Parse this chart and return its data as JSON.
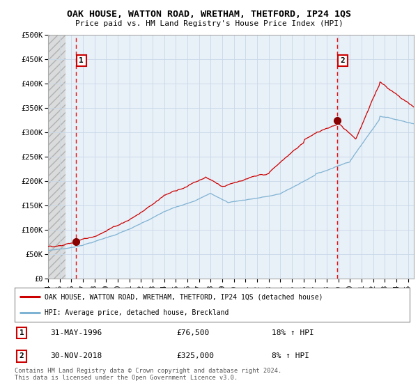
{
  "title": "OAK HOUSE, WATTON ROAD, WRETHAM, THETFORD, IP24 1QS",
  "subtitle": "Price paid vs. HM Land Registry's House Price Index (HPI)",
  "ylabel_ticks": [
    "£0",
    "£50K",
    "£100K",
    "£150K",
    "£200K",
    "£250K",
    "£300K",
    "£350K",
    "£400K",
    "£450K",
    "£500K"
  ],
  "ytick_values": [
    0,
    50000,
    100000,
    150000,
    200000,
    250000,
    300000,
    350000,
    400000,
    450000,
    500000
  ],
  "ylim": [
    0,
    500000
  ],
  "xlim_start": 1994.0,
  "xlim_end": 2025.5,
  "hatch_end": 1995.5,
  "sale1_x": 1996.416,
  "sale1_y": 76500,
  "sale1_label": "1",
  "sale1_date": "31-MAY-1996",
  "sale1_price": "£76,500",
  "sale1_hpi": "18% ↑ HPI",
  "sale2_x": 2018.916,
  "sale2_y": 325000,
  "sale2_label": "2",
  "sale2_date": "30-NOV-2018",
  "sale2_price": "£325,000",
  "sale2_hpi": "8% ↑ HPI",
  "line1_color": "#cc0000",
  "line2_color": "#7fb3d3",
  "vline_color": "#ee0000",
  "marker_color": "#880000",
  "grid_color": "#c8d8e8",
  "background_plot": "#e8f0f8",
  "legend_line1": "OAK HOUSE, WATTON ROAD, WRETHAM, THETFORD, IP24 1QS (detached house)",
  "legend_line2": "HPI: Average price, detached house, Breckland",
  "footer": "Contains HM Land Registry data © Crown copyright and database right 2024.\nThis data is licensed under the Open Government Licence v3.0.",
  "xtick_labels": [
    "94",
    "95",
    "96",
    "97",
    "98",
    "99",
    "00",
    "01",
    "02",
    "03",
    "04",
    "05",
    "06",
    "07",
    "08",
    "09",
    "10",
    "11",
    "12",
    "13",
    "14",
    "15",
    "16",
    "17",
    "18",
    "19",
    "20",
    "21",
    "22",
    "23",
    "24",
    "25"
  ],
  "xtick_positions": [
    1994,
    1995,
    1996,
    1997,
    1998,
    1999,
    2000,
    2001,
    2002,
    2003,
    2004,
    2005,
    2006,
    2007,
    2008,
    2009,
    2010,
    2011,
    2012,
    2013,
    2014,
    2015,
    2016,
    2017,
    2018,
    2019,
    2020,
    2021,
    2022,
    2023,
    2024,
    2025
  ]
}
